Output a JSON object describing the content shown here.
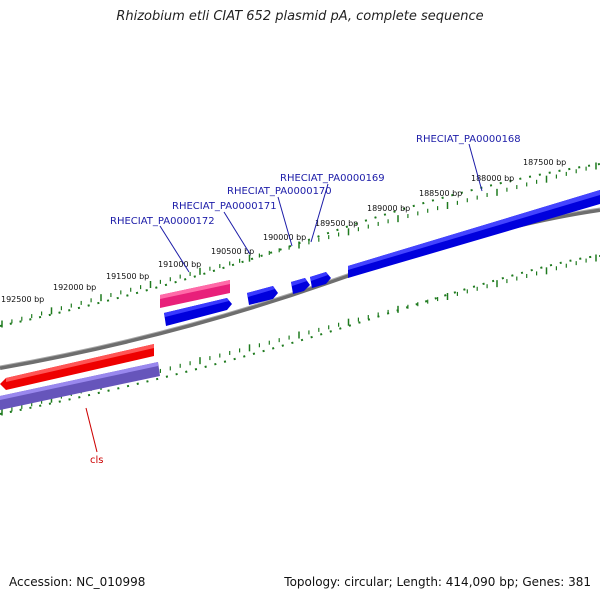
{
  "title": "Rhizobium etli CIAT 652 plasmid pA, complete sequence",
  "footer": {
    "accession": "Accession: NC_010998",
    "summary": "Topology: circular; Length: 414,090 bp; Genes: 381"
  },
  "ticks": [
    {
      "label": "187500 bp"
    },
    {
      "label": "188000 bp"
    },
    {
      "label": "188500 bp"
    },
    {
      "label": "189000 bp"
    },
    {
      "label": "189500 bp"
    },
    {
      "label": "190000 bp"
    },
    {
      "label": "190500 bp"
    },
    {
      "label": "191000 bp"
    },
    {
      "label": "191500 bp"
    },
    {
      "label": "192000 bp"
    },
    {
      "label": "192500 bp"
    }
  ],
  "genes": [
    {
      "label": "RHECIAT_PA0000168",
      "color": "#0000dd"
    },
    {
      "label": "RHECIAT_PA0000169",
      "color": "#0000dd"
    },
    {
      "label": "RHECIAT_PA0000170",
      "color": "#0000dd"
    },
    {
      "label": "RHECIAT_PA0000171",
      "color": "#0000dd"
    },
    {
      "label": "RHECIAT_PA0000172",
      "color": "#0000dd"
    },
    {
      "label": "cls",
      "color": "#cc0000"
    }
  ],
  "colors": {
    "backbone": "#7a7a7a",
    "ruler": "#1e7a1e",
    "forward_cds": "#0000ee",
    "forward_gene": "#ee2277",
    "reverse_cds": "#7766cc",
    "reverse_gene": "#ee0000"
  }
}
